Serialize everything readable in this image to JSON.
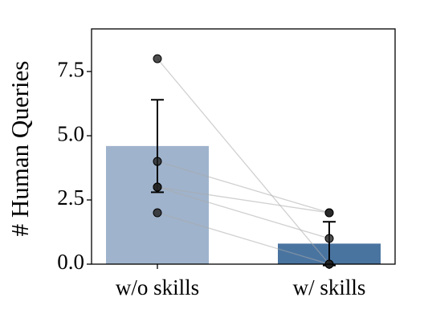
{
  "chart_data": {
    "type": "bar",
    "y_label": "# Human Queries",
    "categories": [
      "w/o skills",
      "w/ skills"
    ],
    "values": [
      4.6,
      0.8
    ],
    "errors": [
      1.8,
      0.85
    ],
    "colors": [
      "#9fb3cc",
      "#4a74a0"
    ],
    "points": [
      [
        8,
        4,
        3,
        3,
        2
      ],
      [
        0,
        2,
        2,
        1,
        0
      ]
    ],
    "ylim": [
      0,
      9.16
    ],
    "yticks": [
      {
        "value": 0,
        "label": "0.0"
      },
      2.5,
      {
        "value": 5,
        "label": "5.0"
      },
      7.5
    ]
  }
}
